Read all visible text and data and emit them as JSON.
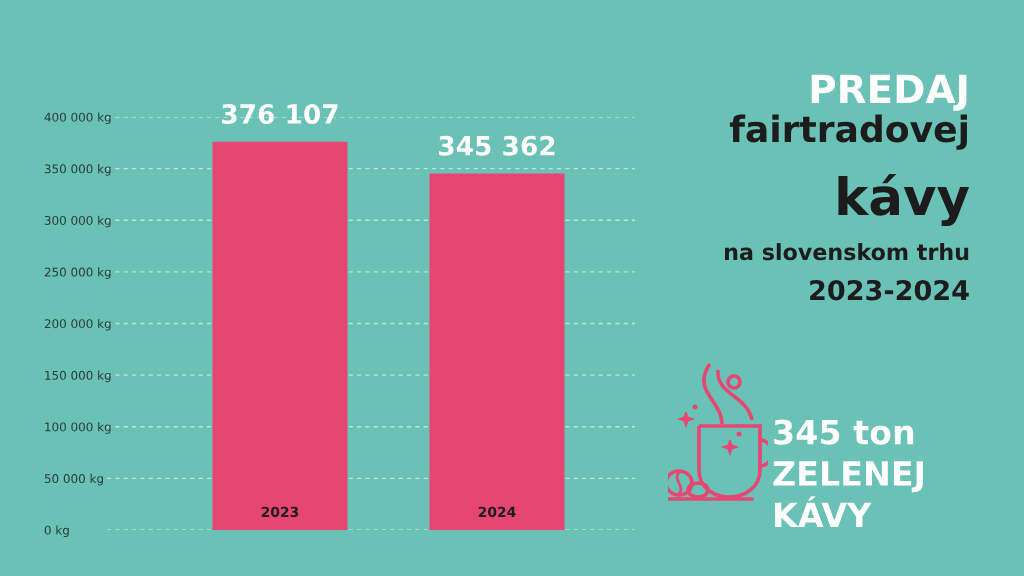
{
  "chart_data": {
    "type": "bar",
    "title": "PREDAJ\nfairtradovej\nkávy",
    "subtitle": "na slovenskom trhu\n2023-2024",
    "categories": [
      "2023",
      "2024"
    ],
    "values": [
      376107,
      345362
    ],
    "color": "#e84672",
    "value_labels": [
      "376 107",
      "345 362"
    ],
    "ylim": [
      0,
      400000
    ],
    "yticks": [
      {
        "value": 0,
        "label": "0 kg"
      },
      {
        "value": 50000,
        "label": "50 000 kg"
      },
      {
        "value": 100000,
        "label": "100 000 kg"
      },
      {
        "value": 150000,
        "label": "150 000 kg"
      },
      {
        "value": 200000,
        "label": "200 000 kg"
      },
      {
        "value": 250000,
        "label": "250 000 kg"
      },
      {
        "value": 300000,
        "label": "300 000 kg"
      },
      {
        "value": 350000,
        "label": "350 000 kg"
      },
      {
        "value": 400000,
        "label": "400 000 kg"
      }
    ],
    "grid": "y",
    "annotations": [
      "345 ton\nZELENEJ\nKÁVY"
    ]
  }
}
